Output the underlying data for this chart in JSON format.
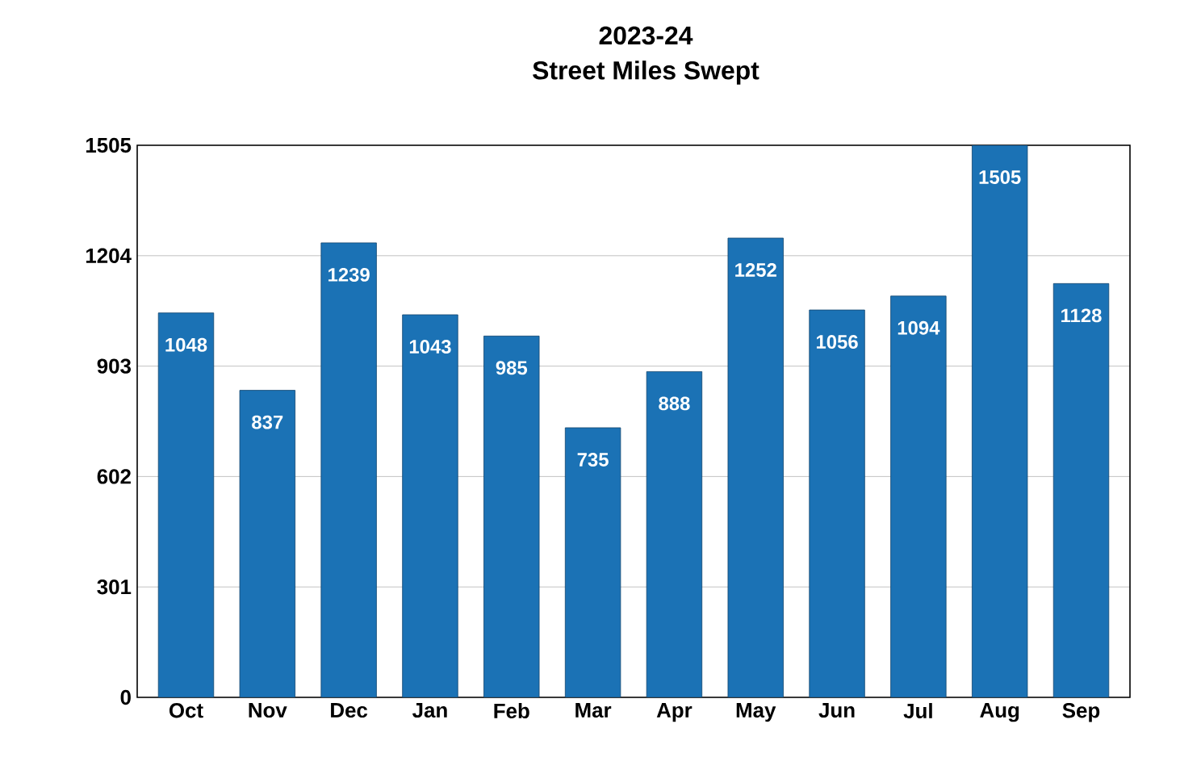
{
  "chart_data": {
    "type": "bar",
    "title": "2023-24",
    "subtitle": "Street Miles Swept",
    "categories": [
      "Oct",
      "Nov",
      "Dec",
      "Jan",
      "Feb",
      "Mar",
      "Apr",
      "May",
      "Jun",
      "Jul",
      "Aug",
      "Sep"
    ],
    "values": [
      1048,
      837,
      1239,
      1043,
      985,
      735,
      888,
      1252,
      1056,
      1094,
      1505,
      1128
    ],
    "color": "#1b72b5",
    "ylim": [
      0,
      1505
    ],
    "yticks": [
      0,
      301,
      602,
      903,
      1204,
      1505
    ],
    "grid": "y",
    "data_labels": true
  }
}
